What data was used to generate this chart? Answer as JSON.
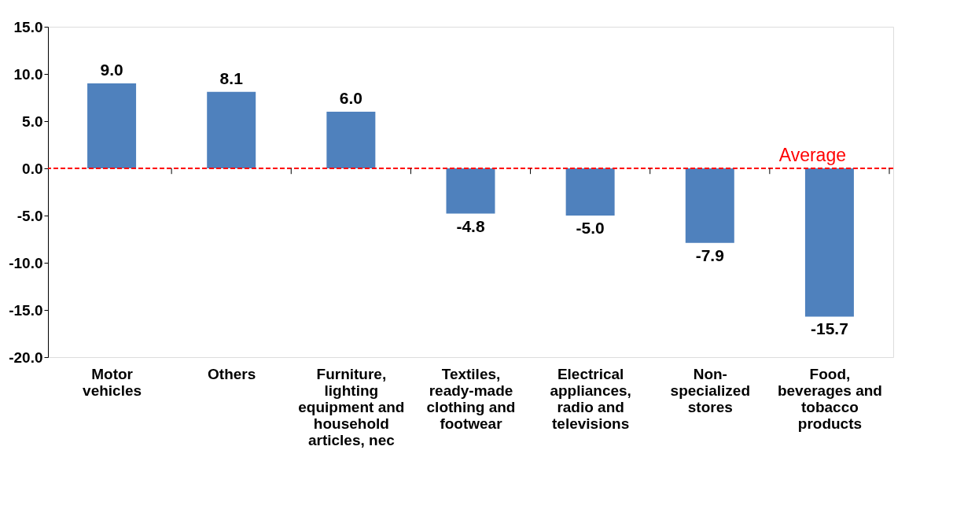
{
  "chart_data": {
    "type": "bar",
    "categories": [
      "Motor vehicles",
      "Others",
      "Furniture, lighting equipment and household articles, nec",
      "Textiles, ready-made clothing and footwear",
      "Electrical appliances, radio and televisions",
      "Non-specialized stores",
      "Food, beverages and tobacco products"
    ],
    "values": [
      9.0,
      8.1,
      6.0,
      -4.8,
      -5.0,
      -7.9,
      -15.7
    ],
    "value_labels": [
      "9.0",
      "8.1",
      "6.0",
      "-4.8",
      "-5.0",
      "-7.9",
      "-15.7"
    ],
    "color": "#4f81bd",
    "ylim": [
      -20,
      15
    ],
    "yticks": [
      {
        "value": -20,
        "label": "-20.0"
      },
      {
        "value": -15,
        "label": "-15.0"
      },
      {
        "value": -10,
        "label": "-10.0"
      },
      {
        "value": -5,
        "label": "-5.0"
      },
      {
        "value": 0,
        "label": "0.0"
      },
      {
        "value": 5,
        "label": "5.0"
      },
      {
        "value": 10,
        "label": "10.0"
      },
      {
        "value": 15,
        "label": "15.0"
      }
    ],
    "ref_lines": [
      {
        "axis": "y",
        "value": 0,
        "label": "Average",
        "color": "#ff0000",
        "line_style": "dashed"
      }
    ],
    "grid": false
  }
}
